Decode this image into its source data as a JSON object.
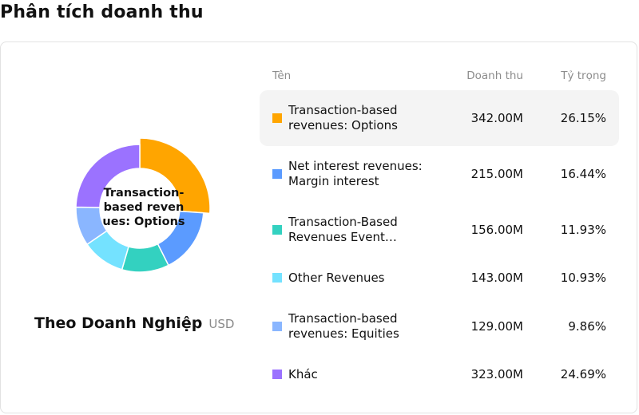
{
  "page": {
    "title": "Phân tích doanh thu"
  },
  "summary": {
    "center_label": "Transaction-based revenues: Options",
    "caption_title": "Theo Doanh Nghiệp",
    "caption_unit": "USD"
  },
  "table": {
    "headers": {
      "name": "Tên",
      "value": "Doanh thu",
      "share": "Tỷ trọng"
    },
    "rows": [
      {
        "name": "Transaction-based revenues: Options",
        "value": "342.00M",
        "share": "26.15%",
        "color": "#FFA500",
        "active": true
      },
      {
        "name": "Net interest revenues: Margin interest",
        "value": "215.00M",
        "share": "16.44%",
        "color": "#5B9BFF",
        "active": false
      },
      {
        "name": "Transaction-Based Revenues Event Contracts",
        "value": "156.00M",
        "share": "11.93%",
        "color": "#33D1C0",
        "active": false
      },
      {
        "name": "Other Revenues",
        "value": "143.00M",
        "share": "10.93%",
        "color": "#74E2FF",
        "active": false
      },
      {
        "name": "Transaction-based revenues: Equities",
        "value": "129.00M",
        "share": "9.86%",
        "color": "#8AB6FF",
        "active": false
      },
      {
        "name": "Khác",
        "value": "323.00M",
        "share": "24.69%",
        "color": "#9B72FF",
        "active": false
      }
    ]
  },
  "chart_data": {
    "type": "pie",
    "variant": "donut",
    "unit": "USD",
    "categories": [
      "Transaction-based revenues: Options",
      "Net interest revenues: Margin interest",
      "Transaction-Based Revenues Event Contracts",
      "Other Revenues",
      "Transaction-based revenues: Equities",
      "Khác"
    ],
    "values": [
      342,
      215,
      156,
      143,
      129,
      323
    ],
    "shares_percent": [
      26.15,
      16.44,
      11.93,
      10.93,
      9.86,
      24.69
    ],
    "colors": [
      "#FFA500",
      "#5B9BFF",
      "#33D1C0",
      "#74E2FF",
      "#8AB6FF",
      "#9B72FF"
    ],
    "highlighted_index": 0
  }
}
